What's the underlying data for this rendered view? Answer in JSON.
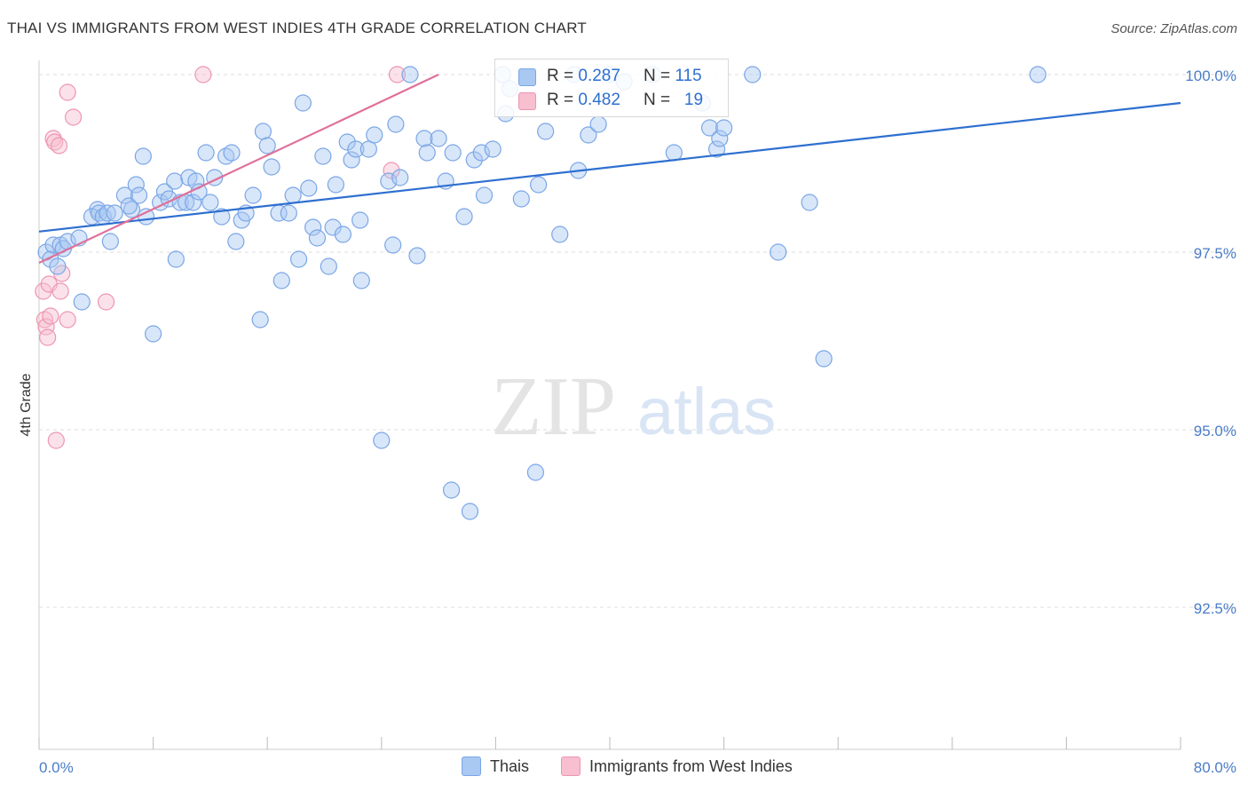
{
  "title": "THAI VS IMMIGRANTS FROM WEST INDIES 4TH GRADE CORRELATION CHART",
  "source": "Source: ZipAtlas.com",
  "watermark": {
    "zip": "ZIP",
    "atlas": "atlas"
  },
  "legend": {
    "r_label": "R =",
    "n_label": "N =",
    "rows": [
      {
        "r": "0.287",
        "n": "115",
        "color": "#a9c8f2",
        "border": "#7aa6e6"
      },
      {
        "r": "0.482",
        "n": "19",
        "color": "#f7bfd0",
        "border": "#ee95b1"
      }
    ]
  },
  "bottom_legend": [
    {
      "label": "Thais",
      "color": "#a9c8f2",
      "border": "#7aa6e6"
    },
    {
      "label": "Immigrants from West Indies",
      "color": "#f7bfd0",
      "border": "#ee95b1"
    }
  ],
  "chart_data": {
    "type": "scatter",
    "title": "THAI VS IMMIGRANTS FROM WEST INDIES 4TH GRADE CORRELATION CHART",
    "xlabel": "",
    "ylabel": "4th Grade",
    "xlim": [
      0,
      80
    ],
    "ylim": [
      90.5,
      100.2
    ],
    "x_tick_labels": [
      "0.0%",
      "80.0%"
    ],
    "y_ticks": [
      100.0,
      97.5,
      95.0,
      92.5
    ],
    "y_tick_labels": [
      "100.0%",
      "97.5%",
      "95.0%",
      "92.5%"
    ],
    "grid": true,
    "series": [
      {
        "name": "Thais",
        "color": "#7aa6e6",
        "fill": "#a9c8f2",
        "trend": {
          "x": [
            0,
            80
          ],
          "y": [
            97.79,
            99.6
          ],
          "color": "#2e6fd0"
        },
        "points": [
          [
            0.5,
            97.5
          ],
          [
            0.8,
            97.4
          ],
          [
            1.0,
            97.6
          ],
          [
            1.3,
            97.3
          ],
          [
            1.5,
            97.6
          ],
          [
            1.7,
            97.55
          ],
          [
            2.0,
            97.65
          ],
          [
            2.8,
            97.7
          ],
          [
            3.0,
            96.8
          ],
          [
            4.1,
            98.1
          ],
          [
            3.7,
            98.0
          ],
          [
            4.2,
            98.05
          ],
          [
            4.5,
            98.0
          ],
          [
            4.8,
            98.05
          ],
          [
            5.0,
            97.65
          ],
          [
            5.3,
            98.05
          ],
          [
            6.0,
            98.3
          ],
          [
            6.5,
            98.1
          ],
          [
            6.3,
            98.15
          ],
          [
            6.8,
            98.45
          ],
          [
            7.0,
            98.3
          ],
          [
            7.5,
            98.0
          ],
          [
            7.3,
            98.85
          ],
          [
            8.0,
            96.35
          ],
          [
            8.5,
            98.2
          ],
          [
            8.8,
            98.35
          ],
          [
            9.1,
            98.25
          ],
          [
            9.5,
            98.5
          ],
          [
            9.6,
            97.4
          ],
          [
            9.9,
            98.2
          ],
          [
            10.3,
            98.2
          ],
          [
            10.5,
            98.55
          ],
          [
            10.8,
            98.2
          ],
          [
            11.0,
            98.5
          ],
          [
            11.2,
            98.35
          ],
          [
            11.7,
            98.9
          ],
          [
            12.0,
            98.2
          ],
          [
            12.3,
            98.55
          ],
          [
            12.8,
            98.0
          ],
          [
            13.1,
            98.85
          ],
          [
            13.5,
            98.9
          ],
          [
            13.8,
            97.65
          ],
          [
            14.2,
            97.95
          ],
          [
            14.5,
            98.05
          ],
          [
            15.0,
            98.3
          ],
          [
            15.5,
            96.55
          ],
          [
            15.7,
            99.2
          ],
          [
            16.0,
            99.0
          ],
          [
            16.3,
            98.7
          ],
          [
            16.8,
            98.05
          ],
          [
            17.0,
            97.1
          ],
          [
            17.5,
            98.05
          ],
          [
            17.8,
            98.3
          ],
          [
            18.2,
            97.4
          ],
          [
            18.5,
            99.6
          ],
          [
            18.9,
            98.4
          ],
          [
            19.2,
            97.85
          ],
          [
            19.5,
            97.7
          ],
          [
            19.9,
            98.85
          ],
          [
            20.3,
            97.3
          ],
          [
            20.6,
            97.85
          ],
          [
            20.8,
            98.45
          ],
          [
            21.3,
            97.75
          ],
          [
            21.6,
            99.05
          ],
          [
            21.9,
            98.8
          ],
          [
            22.2,
            98.95
          ],
          [
            22.5,
            97.95
          ],
          [
            22.6,
            97.1
          ],
          [
            23.1,
            98.95
          ],
          [
            23.5,
            99.15
          ],
          [
            24.0,
            94.85
          ],
          [
            24.5,
            98.5
          ],
          [
            24.8,
            97.6
          ],
          [
            25.0,
            99.3
          ],
          [
            25.3,
            98.55
          ],
          [
            26.0,
            100.0
          ],
          [
            26.5,
            97.45
          ],
          [
            27.0,
            99.1
          ],
          [
            27.2,
            98.9
          ],
          [
            28.0,
            99.1
          ],
          [
            28.5,
            98.5
          ],
          [
            28.9,
            94.15
          ],
          [
            29.0,
            98.9
          ],
          [
            29.8,
            98.0
          ],
          [
            30.2,
            93.85
          ],
          [
            30.5,
            98.8
          ],
          [
            31.0,
            98.9
          ],
          [
            31.8,
            98.95
          ],
          [
            31.2,
            98.3
          ],
          [
            32.5,
            100.0
          ],
          [
            32.7,
            99.45
          ],
          [
            33.0,
            99.8
          ],
          [
            33.8,
            98.25
          ],
          [
            34.8,
            94.4
          ],
          [
            35.0,
            98.45
          ],
          [
            35.5,
            99.2
          ],
          [
            36.5,
            97.75
          ],
          [
            37.5,
            100.0
          ],
          [
            37.8,
            98.65
          ],
          [
            38.5,
            99.15
          ],
          [
            39.2,
            99.3
          ],
          [
            40.0,
            100.0
          ],
          [
            41.0,
            99.9
          ],
          [
            43.0,
            100.0
          ],
          [
            44.5,
            98.9
          ],
          [
            47.0,
            99.25
          ],
          [
            47.5,
            98.95
          ],
          [
            47.7,
            99.1
          ],
          [
            48.0,
            99.25
          ],
          [
            50.0,
            100.0
          ],
          [
            51.8,
            97.5
          ],
          [
            54.0,
            98.2
          ],
          [
            55.0,
            96.0
          ],
          [
            70.0,
            100.0
          ],
          [
            46.5,
            99.6
          ]
        ]
      },
      {
        "name": "Immigrants from West Indies",
        "color": "#ee95b1",
        "fill": "#f7bfd0",
        "trend": {
          "x": [
            0,
            28
          ],
          "y": [
            97.35,
            100.0
          ],
          "color": "#e0709a"
        },
        "points": [
          [
            0.3,
            96.95
          ],
          [
            0.4,
            96.55
          ],
          [
            0.5,
            96.45
          ],
          [
            0.6,
            96.3
          ],
          [
            0.7,
            97.05
          ],
          [
            0.8,
            96.6
          ],
          [
            1.0,
            99.1
          ],
          [
            1.1,
            99.05
          ],
          [
            1.2,
            94.85
          ],
          [
            1.4,
            99.0
          ],
          [
            1.5,
            96.95
          ],
          [
            1.6,
            97.2
          ],
          [
            2.0,
            96.55
          ],
          [
            2.0,
            99.75
          ],
          [
            2.4,
            99.4
          ],
          [
            4.7,
            96.8
          ],
          [
            11.5,
            100.0
          ],
          [
            24.7,
            98.65
          ],
          [
            25.1,
            100.0
          ]
        ]
      }
    ]
  }
}
